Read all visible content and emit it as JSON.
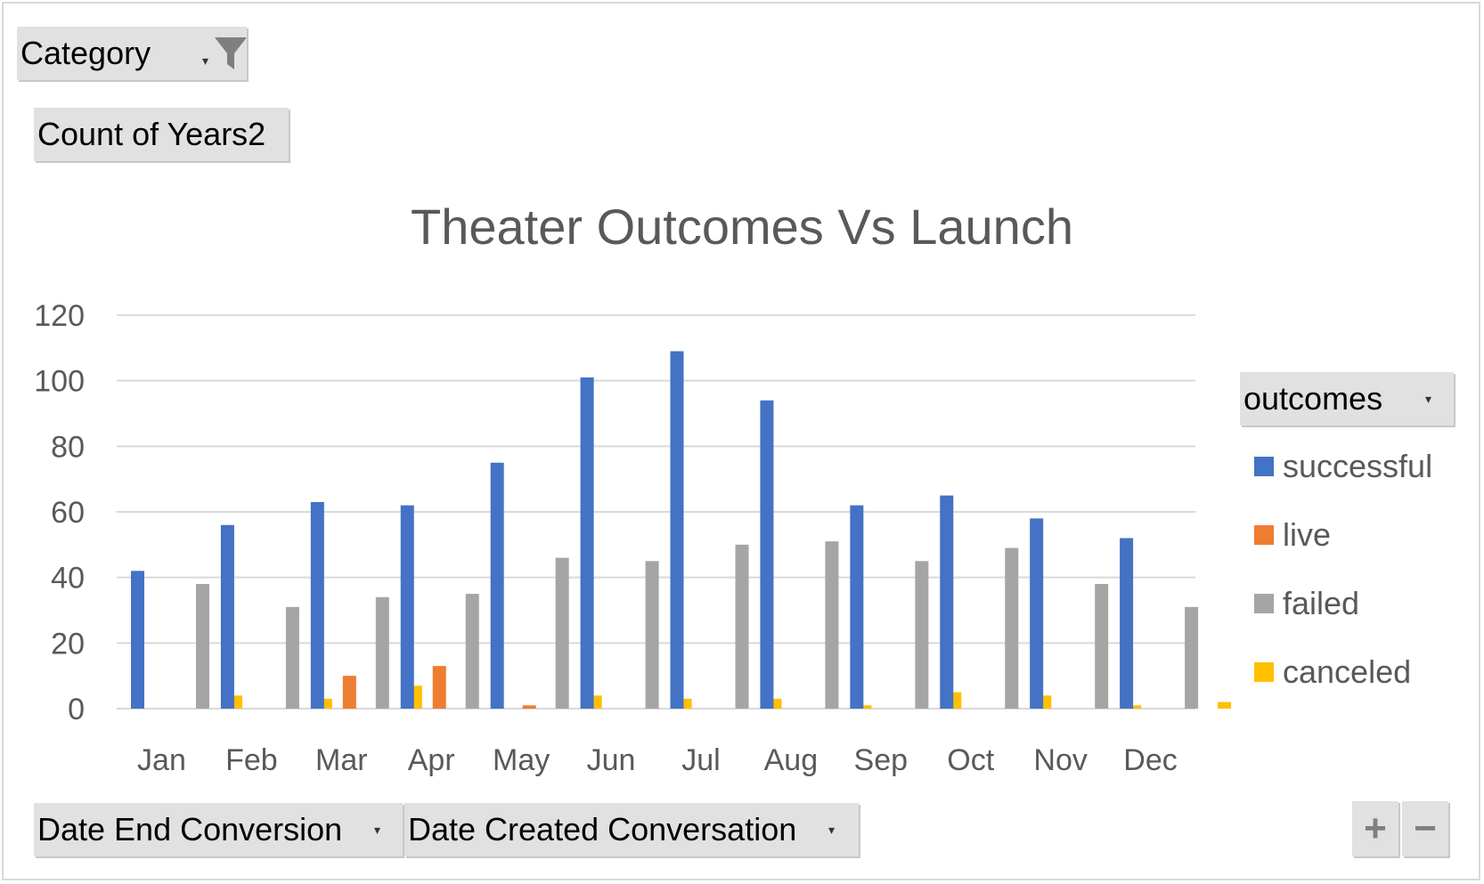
{
  "fields": {
    "category": "Category",
    "values": "Count of Years2",
    "legend_field": "outcomes",
    "axis_field_1": "Date End Conversion",
    "axis_field_2": "Date Created Conversation"
  },
  "icons": {
    "filter": "funnel-icon",
    "dropdown": "dropdown-arrow-icon"
  },
  "zoom": {
    "plus": "+",
    "minus": "−"
  },
  "colors": {
    "successful": "#4472c4",
    "live": "#ed7d31",
    "failed": "#a5a5a5",
    "canceled": "#ffc000",
    "grid": "#d9d9d9"
  },
  "chart_data": {
    "type": "bar",
    "title": "Theater Outcomes Vs Launch",
    "categories": [
      "Jan",
      "Feb",
      "Mar",
      "Apr",
      "May",
      "Jun",
      "Jul",
      "Aug",
      "Sep",
      "Oct",
      "Nov",
      "Dec"
    ],
    "series": [
      {
        "name": "successful",
        "values": [
          42,
          56,
          63,
          62,
          75,
          101,
          109,
          94,
          62,
          65,
          58,
          52
        ]
      },
      {
        "name": "live",
        "values": [
          0,
          0,
          10,
          13,
          1,
          0,
          0,
          0,
          0,
          0,
          0,
          0
        ]
      },
      {
        "name": "failed",
        "values": [
          38,
          31,
          34,
          35,
          46,
          45,
          50,
          51,
          45,
          49,
          38,
          31
        ]
      },
      {
        "name": "canceled",
        "values": [
          4,
          3,
          7,
          0,
          4,
          3,
          3,
          1,
          5,
          4,
          1,
          2
        ]
      }
    ],
    "yticks": [
      0,
      20,
      40,
      60,
      80,
      100,
      120
    ],
    "ylim": [
      0,
      120
    ],
    "grid": true,
    "legend_position": "right"
  }
}
